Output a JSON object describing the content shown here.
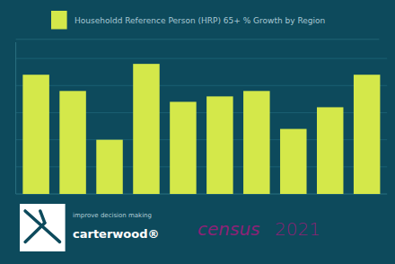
{
  "chart_data": {
    "type": "bar",
    "categories": [
      null,
      null,
      null,
      null,
      null,
      null,
      null,
      null,
      null,
      null
    ],
    "series": [
      {
        "name": "Householdd Reference Person (HRP) 65+ % Growth by Region",
        "color": "#d4e84a",
        "values": [
          22,
          19,
          10,
          24,
          17,
          18,
          19,
          12,
          16,
          22
        ]
      }
    ],
    "ylim": [
      0,
      28
    ],
    "yticks": [
      5,
      10,
      15,
      20,
      25
    ],
    "grid": true,
    "tick_labels": false,
    "legend": "upper left",
    "annotations": [
      "improve decision making",
      "carterwood®",
      "census",
      "2021"
    ]
  }
}
